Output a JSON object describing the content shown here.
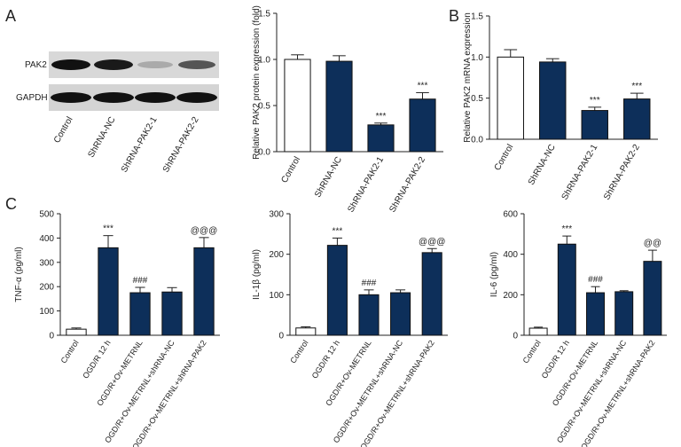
{
  "panels": {
    "a": "A",
    "b": "B",
    "c": "C"
  },
  "blot": {
    "rows": [
      "PAK2",
      "GAPDH"
    ],
    "lanes": [
      "Control",
      "ShRNA-NC",
      "ShRNA-PAK2-1",
      "ShRNA-PAK2-2"
    ]
  },
  "chart_data": [
    {
      "type": "bar",
      "y_label": "Relative PAK2 protein expression (fold)",
      "categories": [
        "Control",
        "ShRNA-NC",
        "ShRNA-PAK2-1",
        "ShRNA-PAK2-2"
      ],
      "values": [
        1.0,
        0.98,
        0.29,
        0.57
      ],
      "errors": [
        0.05,
        0.06,
        0.02,
        0.07
      ],
      "annotations": [
        null,
        null,
        "***",
        "***"
      ],
      "colors": [
        "#ffffff",
        "#0d2f5a",
        "#0d2f5a",
        "#0d2f5a"
      ],
      "ylim": [
        0,
        1.5
      ],
      "yticks": [
        {
          "value": 0,
          "label": "0.0"
        },
        {
          "value": 0.5,
          "label": "0.5"
        },
        {
          "value": 1,
          "label": "1.0"
        },
        {
          "value": 1.5,
          "label": "1.5"
        }
      ]
    },
    {
      "type": "bar",
      "y_label": "Relative PAK2 mRNA expression",
      "categories": [
        "Control",
        "ShRNA-NC",
        "ShRNA-PAK2-1",
        "ShRNA-PAK2-2"
      ],
      "values": [
        1.0,
        0.94,
        0.35,
        0.49
      ],
      "errors": [
        0.09,
        0.04,
        0.04,
        0.07
      ],
      "annotations": [
        null,
        null,
        "***",
        "***"
      ],
      "colors": [
        "#ffffff",
        "#0d2f5a",
        "#0d2f5a",
        "#0d2f5a"
      ],
      "ylim": [
        0,
        1.5
      ],
      "yticks": [
        {
          "value": 0,
          "label": "0.0"
        },
        {
          "value": 0.5,
          "label": "0.5"
        },
        {
          "value": 1,
          "label": "1.0"
        },
        {
          "value": 1.5,
          "label": "1.5"
        }
      ]
    },
    {
      "type": "bar",
      "y_label": "TNF-α (pg/ml)",
      "categories": [
        "Control",
        "OGD/R 12 h",
        "OGD/R+Ov-METRNL",
        "OGD/R+Ov-METRNL+shRNA-NC",
        "OGD/R+Ov-METRNL+shRNA-PAK2"
      ],
      "values": [
        25,
        360,
        175,
        178,
        360
      ],
      "errors": [
        5,
        50,
        22,
        18,
        42
      ],
      "annotations": [
        null,
        "***",
        "###",
        null,
        "@@@"
      ],
      "colors": [
        "#ffffff",
        "#0d2f5a",
        "#0d2f5a",
        "#0d2f5a",
        "#0d2f5a"
      ],
      "ylim": [
        0,
        500
      ],
      "yticks": [
        0,
        100,
        200,
        300,
        400,
        500
      ]
    },
    {
      "type": "bar",
      "y_label": "IL-1β (pg/ml)",
      "categories": [
        "Control",
        "OGD/R 12 h",
        "OGD/R+Ov-METRNL",
        "OGD/R+Ov-METRNL+shRNA-NC",
        "OGD/R+Ov-METRNL+shRNA-PAK2"
      ],
      "values": [
        18,
        222,
        100,
        105,
        204
      ],
      "errors": [
        3,
        18,
        12,
        7,
        10
      ],
      "annotations": [
        null,
        "***",
        "###",
        null,
        "@@@"
      ],
      "colors": [
        "#ffffff",
        "#0d2f5a",
        "#0d2f5a",
        "#0d2f5a",
        "#0d2f5a"
      ],
      "ylim": [
        0,
        300
      ],
      "yticks": [
        0,
        100,
        200,
        300
      ]
    },
    {
      "type": "bar",
      "y_label": "IL-6 (pg/ml)",
      "categories": [
        "Control",
        "OGD/R 12 h",
        "OGD/R+Ov-METRNL",
        "OGD/R+Ov-METRNL+shRNA-NC",
        "OGD/R+Ov-METRNL+shRNA-PAK2"
      ],
      "values": [
        35,
        450,
        210,
        215,
        365
      ],
      "errors": [
        5,
        40,
        30,
        5,
        55
      ],
      "annotations": [
        null,
        "***",
        "###",
        null,
        "@@"
      ],
      "colors": [
        "#ffffff",
        "#0d2f5a",
        "#0d2f5a",
        "#0d2f5a",
        "#0d2f5a"
      ],
      "ylim": [
        0,
        600
      ],
      "yticks": [
        0,
        200,
        400,
        600
      ]
    }
  ]
}
